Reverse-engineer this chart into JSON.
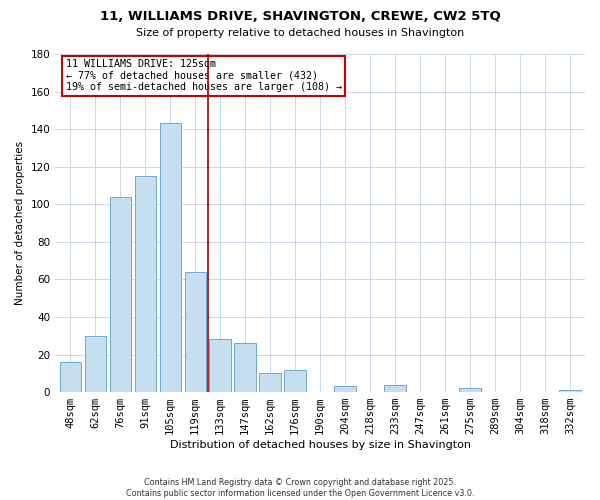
{
  "title": "11, WILLIAMS DRIVE, SHAVINGTON, CREWE, CW2 5TQ",
  "subtitle": "Size of property relative to detached houses in Shavington",
  "xlabel": "Distribution of detached houses by size in Shavington",
  "ylabel": "Number of detached properties",
  "bar_labels": [
    "48sqm",
    "62sqm",
    "76sqm",
    "91sqm",
    "105sqm",
    "119sqm",
    "133sqm",
    "147sqm",
    "162sqm",
    "176sqm",
    "190sqm",
    "204sqm",
    "218sqm",
    "233sqm",
    "247sqm",
    "261sqm",
    "275sqm",
    "289sqm",
    "304sqm",
    "318sqm",
    "332sqm"
  ],
  "bar_values": [
    16,
    30,
    104,
    115,
    143,
    64,
    28,
    26,
    10,
    12,
    0,
    3,
    0,
    4,
    0,
    0,
    2,
    0,
    0,
    0,
    1
  ],
  "bar_color": "#c5dff0",
  "bar_edge_color": "#6aaad4",
  "vline_x": 5.5,
  "vline_color": "#aa0000",
  "ylim": [
    0,
    180
  ],
  "yticks": [
    0,
    20,
    40,
    60,
    80,
    100,
    120,
    140,
    160,
    180
  ],
  "annotation_title": "11 WILLIAMS DRIVE: 125sqm",
  "annotation_line1": "← 77% of detached houses are smaller (432)",
  "annotation_line2": "19% of semi-detached houses are larger (108) →",
  "footer1": "Contains HM Land Registry data © Crown copyright and database right 2025.",
  "footer2": "Contains public sector information licensed under the Open Government Licence v3.0.",
  "background_color": "#ffffff",
  "grid_color": "#c8d8e8"
}
